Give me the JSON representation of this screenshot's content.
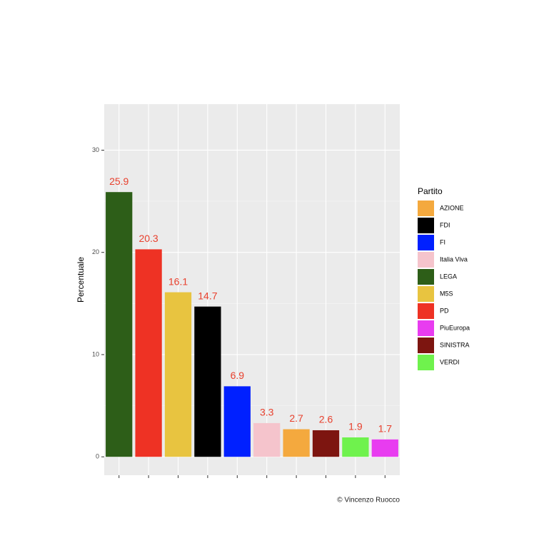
{
  "chart_data": {
    "type": "bar",
    "y_label": "Percentuale",
    "caption": "© Vincenzo Ruocco",
    "categories": [
      null,
      null,
      null,
      null,
      null,
      null,
      null,
      null,
      null,
      null
    ],
    "values": [
      25.9,
      20.3,
      16.1,
      14.7,
      6.9,
      3.3,
      2.7,
      2.6,
      1.9,
      1.7
    ],
    "colors": [
      "#2d5e18",
      "#ee3224",
      "#e8c440",
      "#000000",
      "#0020ff",
      "#f5c4cc",
      "#f4a93e",
      "#7d1510",
      "#6ff24d",
      "#e83cf0"
    ],
    "value_label_color": "#e8402d",
    "ylim": [
      -1.8,
      34.5
    ],
    "yticks": [
      0,
      10,
      20,
      30
    ],
    "grid": true,
    "legend": {
      "title": "Partito",
      "position": "right",
      "items": [
        {
          "name": "AZIONE",
          "color": "#f4a93e"
        },
        {
          "name": "FDI",
          "color": "#000000"
        },
        {
          "name": "FI",
          "color": "#0020ff"
        },
        {
          "name": "Italia Viva",
          "color": "#f5c4cc"
        },
        {
          "name": "LEGA",
          "color": "#2d5e18"
        },
        {
          "name": "M5S",
          "color": "#e8c440"
        },
        {
          "name": "PD",
          "color": "#ee3224"
        },
        {
          "name": "PiuEuropa",
          "color": "#e83cf0"
        },
        {
          "name": "SINISTRA",
          "color": "#7d1510"
        },
        {
          "name": "VERDI",
          "color": "#6ff24d"
        }
      ]
    }
  }
}
